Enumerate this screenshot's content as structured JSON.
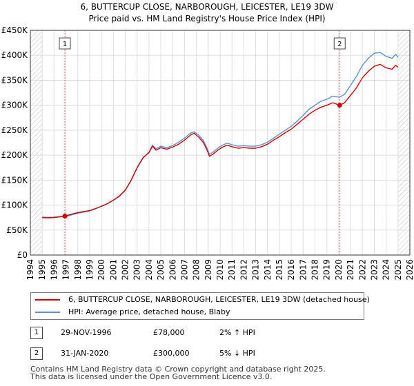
{
  "chart_data": {
    "type": "line",
    "title": "6, BUTTERCUP CLOSE, NARBOROUGH, LEICESTER, LE19 3DW",
    "subtitle": "Price paid vs. HM Land Registry's House Price Index (HPI)",
    "xlim": [
      1994,
      2026
    ],
    "ylim": [
      0,
      450000
    ],
    "x_ticks": [
      "1994",
      "1995",
      "1996",
      "1997",
      "1998",
      "1999",
      "2000",
      "2001",
      "2002",
      "2003",
      "2004",
      "2005",
      "2006",
      "2007",
      "2008",
      "2009",
      "2010",
      "2011",
      "2012",
      "2013",
      "2014",
      "2015",
      "2016",
      "2017",
      "2018",
      "2019",
      "2020",
      "2021",
      "2022",
      "2023",
      "2024",
      "2025",
      "2026"
    ],
    "y_ticks": [
      {
        "value": 0,
        "label": "£0"
      },
      {
        "value": 50000,
        "label": "£50K"
      },
      {
        "value": 100000,
        "label": "£100K"
      },
      {
        "value": 150000,
        "label": "£150K"
      },
      {
        "value": 200000,
        "label": "£200K"
      },
      {
        "value": 250000,
        "label": "£250K"
      },
      {
        "value": 300000,
        "label": "£300K"
      },
      {
        "value": 350000,
        "label": "£350K"
      },
      {
        "value": 400000,
        "label": "£400K"
      },
      {
        "value": 450000,
        "label": "£450K"
      }
    ],
    "hatch_before": 1995.0,
    "hatch_after": 2025.0,
    "colors": {
      "price": "#cc0000",
      "hpi": "#5b8fd6",
      "marker": "#cc0000",
      "vline": "#dd6666"
    },
    "series": [
      {
        "name": "6, BUTTERCUP CLOSE, NARBOROUGH, LEICESTER, LE19 3DW (detached house)",
        "key": "price",
        "points": [
          [
            1995.0,
            75000
          ],
          [
            1995.5,
            74500
          ],
          [
            1996.0,
            75000
          ],
          [
            1996.5,
            76500
          ],
          [
            1996.91,
            78000
          ],
          [
            1997.5,
            82000
          ],
          [
            1998.0,
            85000
          ],
          [
            1998.5,
            87000
          ],
          [
            1999.0,
            89000
          ],
          [
            1999.5,
            93000
          ],
          [
            2000.0,
            98000
          ],
          [
            2000.5,
            103000
          ],
          [
            2001.0,
            110000
          ],
          [
            2001.5,
            118000
          ],
          [
            2002.0,
            130000
          ],
          [
            2002.5,
            150000
          ],
          [
            2003.0,
            175000
          ],
          [
            2003.5,
            195000
          ],
          [
            2004.0,
            205000
          ],
          [
            2004.3,
            218000
          ],
          [
            2004.6,
            210000
          ],
          [
            2005.0,
            215000
          ],
          [
            2005.5,
            212000
          ],
          [
            2006.0,
            216000
          ],
          [
            2006.5,
            222000
          ],
          [
            2007.0,
            230000
          ],
          [
            2007.5,
            240000
          ],
          [
            2007.8,
            244000
          ],
          [
            2008.2,
            236000
          ],
          [
            2008.6,
            225000
          ],
          [
            2008.9,
            210000
          ],
          [
            2009.1,
            198000
          ],
          [
            2009.4,
            202000
          ],
          [
            2009.8,
            210000
          ],
          [
            2010.2,
            216000
          ],
          [
            2010.6,
            220000
          ],
          [
            2011.0,
            217000
          ],
          [
            2011.5,
            214000
          ],
          [
            2012.0,
            215000
          ],
          [
            2012.5,
            214000
          ],
          [
            2013.0,
            214000
          ],
          [
            2013.5,
            217000
          ],
          [
            2014.0,
            222000
          ],
          [
            2014.5,
            230000
          ],
          [
            2015.0,
            237000
          ],
          [
            2015.5,
            245000
          ],
          [
            2016.0,
            252000
          ],
          [
            2016.5,
            262000
          ],
          [
            2017.0,
            272000
          ],
          [
            2017.5,
            282000
          ],
          [
            2018.0,
            290000
          ],
          [
            2018.5,
            296000
          ],
          [
            2019.0,
            300000
          ],
          [
            2019.5,
            305000
          ],
          [
            2020.08,
            300000
          ],
          [
            2020.5,
            305000
          ],
          [
            2021.0,
            320000
          ],
          [
            2021.5,
            335000
          ],
          [
            2022.0,
            355000
          ],
          [
            2022.5,
            368000
          ],
          [
            2023.0,
            378000
          ],
          [
            2023.5,
            382000
          ],
          [
            2024.0,
            375000
          ],
          [
            2024.5,
            372000
          ],
          [
            2024.8,
            380000
          ],
          [
            2025.0,
            376000
          ]
        ]
      },
      {
        "name": "HPI: Average price, detached house, Blaby",
        "key": "hpi",
        "points": [
          [
            1995.0,
            76000
          ],
          [
            1995.5,
            75500
          ],
          [
            1996.0,
            76000
          ],
          [
            1996.5,
            77000
          ],
          [
            1996.91,
            76500
          ],
          [
            1997.5,
            80500
          ],
          [
            1998.0,
            83500
          ],
          [
            1998.5,
            86000
          ],
          [
            1999.0,
            88500
          ],
          [
            1999.5,
            92500
          ],
          [
            2000.0,
            97500
          ],
          [
            2000.5,
            102500
          ],
          [
            2001.0,
            109500
          ],
          [
            2001.5,
            117500
          ],
          [
            2002.0,
            129000
          ],
          [
            2002.5,
            149000
          ],
          [
            2003.0,
            174000
          ],
          [
            2003.5,
            194000
          ],
          [
            2004.0,
            206000
          ],
          [
            2004.3,
            220000
          ],
          [
            2004.6,
            213000
          ],
          [
            2005.0,
            218000
          ],
          [
            2005.5,
            215000
          ],
          [
            2006.0,
            219000
          ],
          [
            2006.5,
            226000
          ],
          [
            2007.0,
            234000
          ],
          [
            2007.5,
            244000
          ],
          [
            2007.8,
            247000
          ],
          [
            2008.2,
            240000
          ],
          [
            2008.6,
            229000
          ],
          [
            2008.9,
            214000
          ],
          [
            2009.1,
            202000
          ],
          [
            2009.4,
            206000
          ],
          [
            2009.8,
            214000
          ],
          [
            2010.2,
            220000
          ],
          [
            2010.6,
            224000
          ],
          [
            2011.0,
            221000
          ],
          [
            2011.5,
            218000
          ],
          [
            2012.0,
            219000
          ],
          [
            2012.5,
            218000
          ],
          [
            2013.0,
            218000
          ],
          [
            2013.5,
            221000
          ],
          [
            2014.0,
            226000
          ],
          [
            2014.5,
            234000
          ],
          [
            2015.0,
            242000
          ],
          [
            2015.5,
            250000
          ],
          [
            2016.0,
            258000
          ],
          [
            2016.5,
            268000
          ],
          [
            2017.0,
            280000
          ],
          [
            2017.5,
            292000
          ],
          [
            2018.0,
            300000
          ],
          [
            2018.5,
            308000
          ],
          [
            2019.0,
            312000
          ],
          [
            2019.5,
            318000
          ],
          [
            2020.08,
            316000
          ],
          [
            2020.5,
            322000
          ],
          [
            2021.0,
            340000
          ],
          [
            2021.5,
            358000
          ],
          [
            2022.0,
            380000
          ],
          [
            2022.5,
            394000
          ],
          [
            2023.0,
            404000
          ],
          [
            2023.5,
            406000
          ],
          [
            2024.0,
            398000
          ],
          [
            2024.5,
            394000
          ],
          [
            2024.8,
            402000
          ],
          [
            2025.0,
            396000
          ]
        ]
      }
    ],
    "sales": [
      {
        "num": "1",
        "x": 1996.91,
        "value": 78000
      },
      {
        "num": "2",
        "x": 2020.08,
        "value": 300000
      }
    ]
  },
  "legend": {
    "price_label": "6, BUTTERCUP CLOSE, NARBOROUGH, LEICESTER, LE19 3DW (detached house)",
    "hpi_label": "HPI: Average price, detached house, Blaby"
  },
  "sales_table": [
    {
      "num": "1",
      "date": "29-NOV-1996",
      "price": "£78,000",
      "hpi": "2% ↑ HPI"
    },
    {
      "num": "2",
      "date": "31-JAN-2020",
      "price": "£300,000",
      "hpi": "5% ↓ HPI"
    }
  ],
  "footer": {
    "line1": "Contains HM Land Registry data © Crown copyright and database right 2025.",
    "line2": "This data is licensed under the Open Government Licence v3.0."
  }
}
